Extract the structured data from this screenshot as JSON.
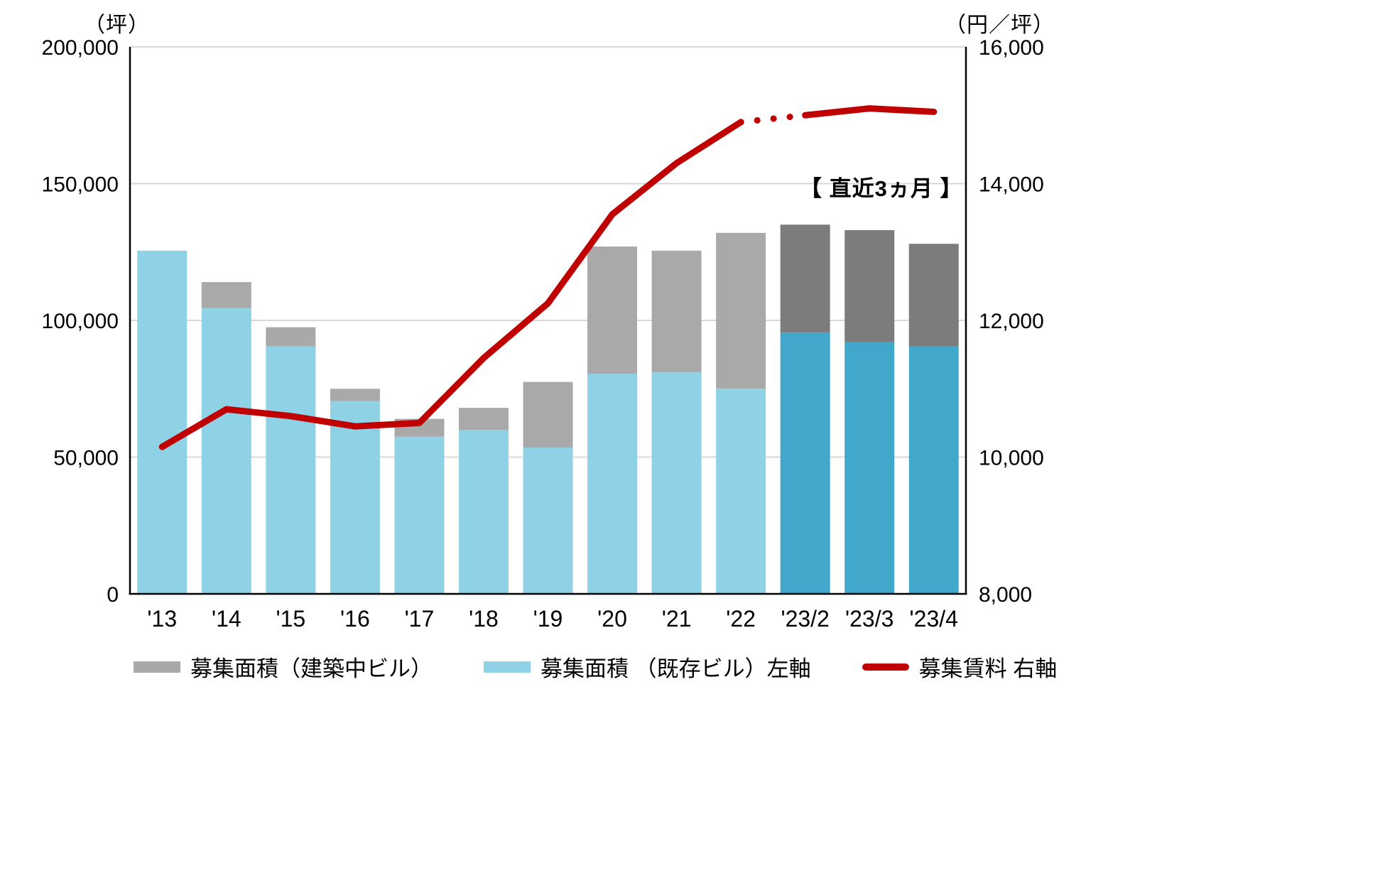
{
  "chart_data": {
    "type": "bar",
    "categories": [
      "'13",
      "'14",
      "'15",
      "'16",
      "'17",
      "'18",
      "'19",
      "'20",
      "'21",
      "'22",
      "'23/2",
      "'23/3",
      "'23/4"
    ],
    "series": [
      {
        "name": "募集面積 （既存ビル）左軸",
        "type": "bar",
        "stack": "area",
        "axis": "left",
        "values": [
          125500,
          104500,
          90500,
          70500,
          57500,
          60000,
          53500,
          80500,
          81000,
          75000,
          95500,
          92000,
          90500
        ]
      },
      {
        "name": "募集面積（建築中ビル）",
        "type": "bar",
        "stack": "area",
        "axis": "left",
        "values": [
          0,
          9500,
          7000,
          4500,
          6500,
          8000,
          24000,
          46500,
          44500,
          57000,
          39500,
          41000,
          37500
        ]
      },
      {
        "name": "募集賃料 右軸",
        "type": "line",
        "axis": "right",
        "values": [
          10150,
          10700,
          10600,
          10450,
          10500,
          11450,
          12250,
          13550,
          14300,
          14900,
          15000,
          15100,
          15050
        ]
      }
    ],
    "left_axis": {
      "unit_label": "（坪）",
      "min": 0,
      "max": 200000,
      "step": 50000
    },
    "right_axis": {
      "unit_label": "（円／坪）",
      "min": 8000,
      "max": 16000,
      "step": 2000
    },
    "annotation": "【 直近3ヵ月 】",
    "recent_start_index": 10,
    "line_break_before_index": 10,
    "grid": true,
    "legend_position": "bottom",
    "colors": {
      "existing": "#8FD2E5",
      "existing_recent": "#41A8CC",
      "construction": "#A9A9A9",
      "construction_recent": "#7C7C7C",
      "line": "#C00000",
      "grid": "#D9D9D9",
      "axis": "#000000"
    },
    "legend": [
      {
        "label": "募集面積（建築中ビル）",
        "swatch": "construction"
      },
      {
        "label": "募集面積 （既存ビル）左軸",
        "swatch": "existing"
      },
      {
        "label": "募集賃料 右軸",
        "swatch": "line"
      }
    ]
  }
}
